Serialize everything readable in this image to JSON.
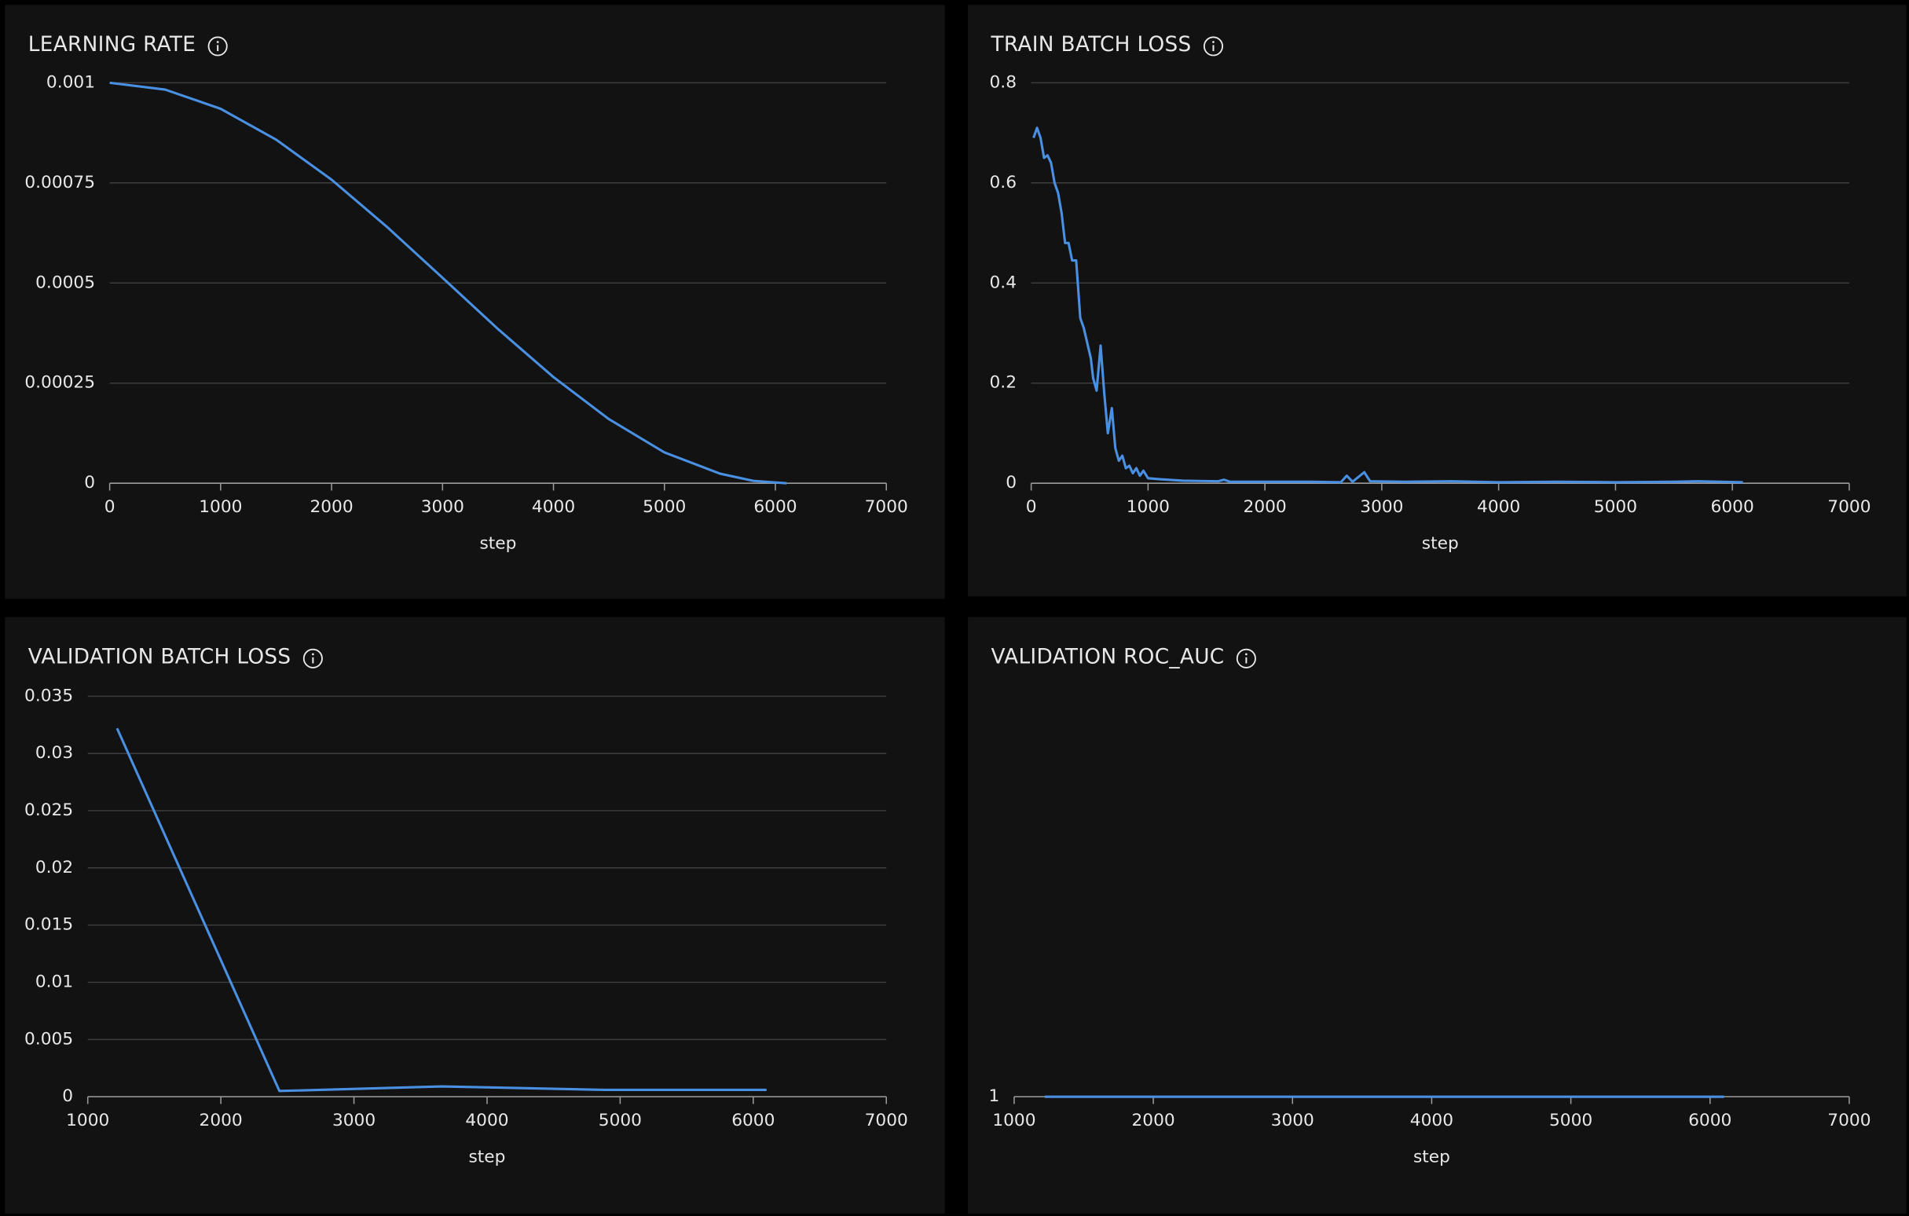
{
  "chart_data": [
    {
      "type": "line",
      "title": "LEARNING RATE",
      "x_label": "step",
      "color": "#4a90e2",
      "x": [
        0,
        500,
        1000,
        1500,
        2000,
        2500,
        3000,
        3500,
        4000,
        4500,
        5000,
        5500,
        5800,
        6100
      ],
      "values": [
        0.001,
        0.000983,
        0.000935,
        0.000858,
        0.000758,
        0.00064,
        0.000513,
        0.000385,
        0.000265,
        0.00016,
        7.7e-05,
        2.4e-05,
        6e-06,
        0
      ],
      "xlim": [
        0,
        7000
      ],
      "xticks": [
        0,
        1000,
        2000,
        3000,
        4000,
        5000,
        6000,
        7000
      ],
      "ylim": [
        0,
        0.001
      ],
      "yticks": [
        0,
        0.00025,
        0.0005,
        0.00075,
        0.001
      ],
      "grid": true
    },
    {
      "type": "line",
      "title": "TRAIN BATCH LOSS",
      "x_label": "step",
      "color": "#4a90e2",
      "x": [
        20,
        50,
        80,
        110,
        140,
        170,
        200,
        230,
        260,
        290,
        320,
        350,
        385,
        420,
        450,
        480,
        510,
        530,
        560,
        594,
        625,
        656,
        690,
        720,
        750,
        780,
        810,
        840,
        870,
        900,
        930,
        960,
        1000,
        1100,
        1300,
        1600,
        1650,
        1700,
        2000,
        2400,
        2650,
        2700,
        2750,
        2850,
        2900,
        3200,
        3600,
        4000,
        4500,
        5000,
        5500,
        5700,
        6090
      ],
      "values": [
        0.69,
        0.71,
        0.69,
        0.65,
        0.655,
        0.64,
        0.6,
        0.58,
        0.54,
        0.48,
        0.48,
        0.445,
        0.445,
        0.33,
        0.31,
        0.28,
        0.25,
        0.21,
        0.185,
        0.275,
        0.18,
        0.1,
        0.15,
        0.07,
        0.045,
        0.055,
        0.03,
        0.035,
        0.02,
        0.03,
        0.015,
        0.025,
        0.01,
        0.008,
        0.005,
        0.004,
        0.007,
        0.003,
        0.003,
        0.003,
        0.002,
        0.015,
        0.003,
        0.022,
        0.004,
        0.003,
        0.004,
        0.002,
        0.003,
        0.002,
        0.003,
        0.004,
        0.002
      ],
      "xlim": [
        0,
        7000
      ],
      "xticks": [
        0,
        1000,
        2000,
        3000,
        4000,
        5000,
        6000,
        7000
      ],
      "ylim": [
        0,
        0.8
      ],
      "yticks": [
        0,
        0.2,
        0.4,
        0.6,
        0.8
      ],
      "grid": true
    },
    {
      "type": "line",
      "title": "VALIDATION BATCH LOSS",
      "x_label": "step",
      "color": "#4a90e2",
      "x": [
        1220,
        2440,
        3660,
        4880,
        6100
      ],
      "values": [
        0.0322,
        0.0005,
        0.0009,
        0.0006,
        0.0006
      ],
      "xlim": [
        1000,
        7000
      ],
      "xticks": [
        1000,
        2000,
        3000,
        4000,
        5000,
        6000,
        7000
      ],
      "ylim": [
        0,
        0.035
      ],
      "yticks": [
        0,
        0.005,
        0.01,
        0.015,
        0.02,
        0.025,
        0.03,
        0.035
      ],
      "grid": true
    },
    {
      "type": "line",
      "title": "VALIDATION ROC_AUC",
      "x_label": "step",
      "color": "#4a90e2",
      "x": [
        1220,
        2440,
        3660,
        4880,
        6100
      ],
      "values": [
        1,
        1,
        1,
        1,
        1
      ],
      "xlim": [
        1000,
        7000
      ],
      "xticks": [
        1000,
        2000,
        3000,
        4000,
        5000,
        6000,
        7000
      ],
      "ylim": [
        1,
        2
      ],
      "yticks": [
        1
      ],
      "grid": true
    }
  ]
}
